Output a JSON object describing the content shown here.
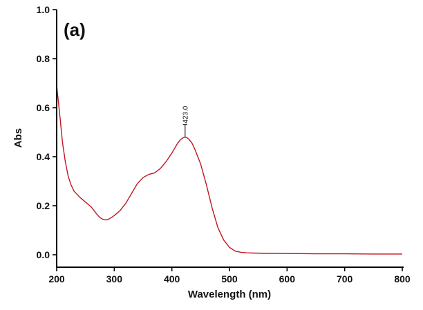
{
  "panel_label": "(a)",
  "colors": {
    "series": "#c0161f",
    "axis": "#000000"
  },
  "chart_data": {
    "type": "line",
    "title": "",
    "xlabel": "Wavelength (nm)",
    "ylabel": "Abs",
    "xlim": [
      200,
      800
    ],
    "ylim": [
      0,
      1.0
    ],
    "xticks": [
      200,
      300,
      400,
      500,
      600,
      700,
      800
    ],
    "xtick_labels": [
      "200",
      "300",
      "400",
      "500",
      "600",
      "700",
      "800"
    ],
    "yticks": [
      0,
      0.2,
      0.4,
      0.6,
      0.8,
      1.0
    ],
    "ytick_labels": [
      "0.0",
      "0.2",
      "0.4",
      "0.6",
      "0.8",
      "1.0"
    ],
    "grid": false,
    "legend": "none",
    "annotation": {
      "x": 423.0,
      "y": 0.48,
      "text": "423.0"
    },
    "series": [
      {
        "color": "#c0161f",
        "x": [
          200,
          205,
          210,
          215,
          220,
          225,
          230,
          240,
          250,
          260,
          265,
          270,
          275,
          280,
          285,
          290,
          295,
          300,
          310,
          320,
          330,
          340,
          350,
          360,
          370,
          380,
          390,
          400,
          410,
          415,
          420,
          423,
          426,
          430,
          435,
          440,
          450,
          460,
          470,
          480,
          490,
          500,
          510,
          520,
          530,
          540,
          560,
          600,
          650,
          700,
          750,
          800
        ],
        "y": [
          0.69,
          0.58,
          0.46,
          0.38,
          0.32,
          0.285,
          0.26,
          0.235,
          0.215,
          0.195,
          0.18,
          0.165,
          0.152,
          0.145,
          0.142,
          0.145,
          0.152,
          0.16,
          0.18,
          0.21,
          0.25,
          0.29,
          0.315,
          0.328,
          0.334,
          0.352,
          0.38,
          0.415,
          0.455,
          0.47,
          0.478,
          0.48,
          0.478,
          0.47,
          0.455,
          0.43,
          0.37,
          0.285,
          0.19,
          0.11,
          0.06,
          0.03,
          0.015,
          0.01,
          0.008,
          0.007,
          0.006,
          0.005,
          0.004,
          0.004,
          0.003,
          0.003
        ]
      }
    ]
  }
}
